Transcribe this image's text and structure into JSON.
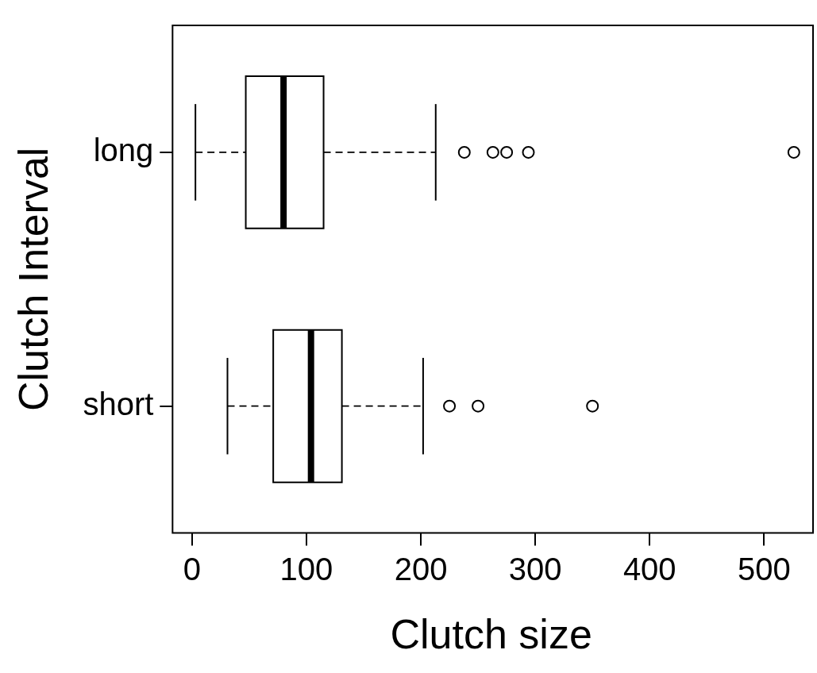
{
  "chart_data": {
    "type": "box",
    "orientation": "horizontal",
    "xlabel": "Clutch size",
    "ylabel": "Clutch Interval",
    "categories": [
      "long",
      "short"
    ],
    "boxes": [
      {
        "low": 3,
        "q1": 47,
        "median": 80,
        "q3": 115,
        "high": 213,
        "outliers": [
          238,
          263,
          275,
          294,
          526
        ]
      },
      {
        "low": 31,
        "q1": 71,
        "median": 104,
        "q3": 131,
        "high": 202,
        "outliers": [
          225,
          250,
          350
        ]
      }
    ],
    "color": "#000000",
    "xlim": [
      -17,
      540
    ],
    "xticks": [
      0,
      100,
      200,
      300,
      400,
      500
    ],
    "grid": false,
    "legend": false,
    "marker": "circle"
  }
}
